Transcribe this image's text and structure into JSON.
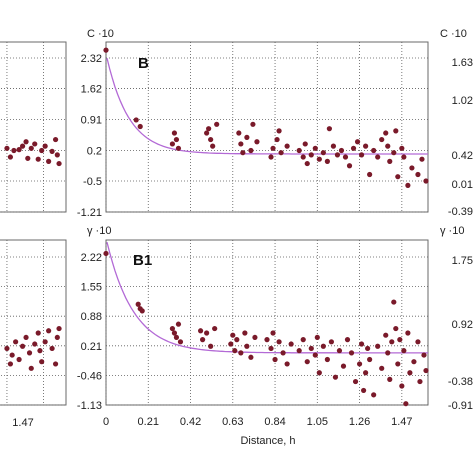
{
  "chart_data": [
    {
      "id": "left_top",
      "type": "scatter",
      "ylim": [
        -1.21,
        2.32
      ],
      "grid": true,
      "points": [
        [
          1.26,
          0.25
        ],
        [
          1.28,
          0.05
        ],
        [
          1.3,
          0.2
        ],
        [
          1.33,
          0.22
        ],
        [
          1.35,
          0.3
        ],
        [
          1.37,
          0.4
        ],
        [
          1.38,
          0.02
        ],
        [
          1.4,
          0.25
        ],
        [
          1.42,
          0.35
        ],
        [
          1.44,
          0.0
        ],
        [
          1.46,
          0.2
        ],
        [
          1.48,
          0.3
        ],
        [
          1.5,
          -0.05
        ],
        [
          1.52,
          0.18
        ],
        [
          1.54,
          0.45
        ],
        [
          1.55,
          0.1
        ],
        [
          1.56,
          -0.1
        ]
      ]
    },
    {
      "id": "left_bottom",
      "type": "scatter",
      "ylim": [
        -1.13,
        2.22
      ],
      "xticks": [
        "1.47"
      ],
      "grid": true,
      "points": [
        [
          1.26,
          0.15
        ],
        [
          1.28,
          -0.2
        ],
        [
          1.29,
          0.0
        ],
        [
          1.31,
          0.3
        ],
        [
          1.33,
          -0.1
        ],
        [
          1.35,
          0.2
        ],
        [
          1.37,
          0.4
        ],
        [
          1.39,
          0.05
        ],
        [
          1.4,
          -0.3
        ],
        [
          1.42,
          0.25
        ],
        [
          1.44,
          0.5
        ],
        [
          1.45,
          0.1
        ],
        [
          1.46,
          -0.15
        ],
        [
          1.48,
          0.3
        ],
        [
          1.5,
          0.55
        ],
        [
          1.52,
          0.15
        ],
        [
          1.54,
          -0.2
        ],
        [
          1.55,
          0.4
        ],
        [
          1.56,
          0.6
        ]
      ]
    },
    {
      "id": "B",
      "type": "scatter",
      "panel_label": "B",
      "y_axis_label": "C ·10",
      "yticks": [
        "2.32",
        "1.62",
        "0.91",
        "0.2",
        "-0.5",
        "-1.21"
      ],
      "ytick_values": [
        2.32,
        1.62,
        0.91,
        0.2,
        -0.5,
        -1.21
      ],
      "ylim": [
        -1.21,
        2.32
      ],
      "xlim": [
        0,
        1.6
      ],
      "grid": true,
      "fit_curve": {
        "asymptote": 0.12,
        "amplitude": 2.3,
        "decay": 9
      },
      "points": [
        [
          0.0,
          2.5
        ],
        [
          0.15,
          0.9
        ],
        [
          0.17,
          0.75
        ],
        [
          0.33,
          0.35
        ],
        [
          0.34,
          0.6
        ],
        [
          0.35,
          0.45
        ],
        [
          0.36,
          0.25
        ],
        [
          0.5,
          0.6
        ],
        [
          0.51,
          0.7
        ],
        [
          0.52,
          0.45
        ],
        [
          0.53,
          0.3
        ],
        [
          0.55,
          0.8
        ],
        [
          0.66,
          0.6
        ],
        [
          0.67,
          0.35
        ],
        [
          0.68,
          0.15
        ],
        [
          0.7,
          0.5
        ],
        [
          0.72,
          0.2
        ],
        [
          0.73,
          0.8
        ],
        [
          0.75,
          0.4
        ],
        [
          0.82,
          0.05
        ],
        [
          0.83,
          0.25
        ],
        [
          0.85,
          0.45
        ],
        [
          0.86,
          0.65
        ],
        [
          0.87,
          0.15
        ],
        [
          0.9,
          0.3
        ],
        [
          0.96,
          0.2
        ],
        [
          0.98,
          0.05
        ],
        [
          0.99,
          0.35
        ],
        [
          1.0,
          -0.1
        ],
        [
          1.02,
          0.1
        ],
        [
          1.04,
          0.25
        ],
        [
          1.06,
          0.0
        ],
        [
          1.08,
          0.15
        ],
        [
          1.1,
          -0.05
        ],
        [
          1.11,
          0.7
        ],
        [
          1.13,
          0.3
        ],
        [
          1.15,
          0.1
        ],
        [
          1.17,
          0.2
        ],
        [
          1.19,
          0.05
        ],
        [
          1.21,
          -0.15
        ],
        [
          1.23,
          0.25
        ],
        [
          1.25,
          0.4
        ],
        [
          1.27,
          0.1
        ],
        [
          1.29,
          0.3
        ],
        [
          1.31,
          -0.35
        ],
        [
          1.33,
          0.2
        ],
        [
          1.35,
          0.05
        ],
        [
          1.37,
          0.45
        ],
        [
          1.39,
          0.6
        ],
        [
          1.4,
          0.3
        ],
        [
          1.41,
          -0.05
        ],
        [
          1.43,
          0.15
        ],
        [
          1.44,
          0.65
        ],
        [
          1.45,
          -0.4
        ],
        [
          1.47,
          0.25
        ],
        [
          1.48,
          0.05
        ],
        [
          1.5,
          -0.6
        ],
        [
          1.52,
          -0.2
        ],
        [
          1.55,
          -0.35
        ],
        [
          1.57,
          0.0
        ],
        [
          1.59,
          -0.5
        ]
      ]
    },
    {
      "id": "B1",
      "type": "scatter",
      "panel_label": "B1",
      "y_axis_label": "γ ·10",
      "yticks": [
        "2.22",
        "1.55",
        "0.88",
        "0.21",
        "-0.46",
        "-1.13"
      ],
      "ytick_values": [
        2.22,
        1.55,
        0.88,
        0.21,
        -0.46,
        -1.13
      ],
      "xticks": [
        "0",
        "0.21",
        "0.42",
        "0.63",
        "0.84",
        "1.05",
        "1.26",
        "1.47"
      ],
      "xtick_values": [
        0,
        0.21,
        0.42,
        0.63,
        0.84,
        1.05,
        1.26,
        1.47
      ],
      "ylim": [
        -1.13,
        2.22
      ],
      "xlim": [
        0,
        1.6
      ],
      "xlabel": "Distance, h",
      "grid": true,
      "fit_curve": {
        "asymptote": 0.05,
        "amplitude": 2.6,
        "decay": 7.5
      },
      "points": [
        [
          0.0,
          2.3
        ],
        [
          0.16,
          1.15
        ],
        [
          0.17,
          1.05
        ],
        [
          0.18,
          1.0
        ],
        [
          0.33,
          0.6
        ],
        [
          0.34,
          0.5
        ],
        [
          0.35,
          0.4
        ],
        [
          0.36,
          0.7
        ],
        [
          0.37,
          0.3
        ],
        [
          0.47,
          0.55
        ],
        [
          0.48,
          0.35
        ],
        [
          0.5,
          0.5
        ],
        [
          0.52,
          0.2
        ],
        [
          0.54,
          0.6
        ],
        [
          0.62,
          0.25
        ],
        [
          0.63,
          0.45
        ],
        [
          0.64,
          0.1
        ],
        [
          0.65,
          0.35
        ],
        [
          0.67,
          0.05
        ],
        [
          0.69,
          0.5
        ],
        [
          0.7,
          0.2
        ],
        [
          0.72,
          -0.05
        ],
        [
          0.74,
          0.4
        ],
        [
          0.8,
          0.35
        ],
        [
          0.82,
          0.15
        ],
        [
          0.83,
          0.5
        ],
        [
          0.84,
          -0.1
        ],
        [
          0.86,
          0.3
        ],
        [
          0.88,
          0.05
        ],
        [
          0.9,
          -0.2
        ],
        [
          0.92,
          0.25
        ],
        [
          0.96,
          0.1
        ],
        [
          0.98,
          0.35
        ],
        [
          1.0,
          -0.15
        ],
        [
          1.02,
          0.15
        ],
        [
          1.04,
          0.0
        ],
        [
          1.05,
          0.4
        ],
        [
          1.06,
          -0.4
        ],
        [
          1.08,
          0.2
        ],
        [
          1.1,
          -0.1
        ],
        [
          1.12,
          0.3
        ],
        [
          1.14,
          -0.5
        ],
        [
          1.16,
          0.1
        ],
        [
          1.18,
          -0.25
        ],
        [
          1.2,
          0.35
        ],
        [
          1.22,
          0.05
        ],
        [
          1.24,
          -0.6
        ],
        [
          1.26,
          -0.2
        ],
        [
          1.27,
          0.25
        ],
        [
          1.28,
          -0.8
        ],
        [
          1.29,
          -0.4
        ],
        [
          1.3,
          0.15
        ],
        [
          1.31,
          -0.1
        ],
        [
          1.33,
          -0.9
        ],
        [
          1.35,
          0.2
        ],
        [
          1.37,
          -0.3
        ],
        [
          1.39,
          0.45
        ],
        [
          1.4,
          0.05
        ],
        [
          1.41,
          -0.55
        ],
        [
          1.42,
          0.3
        ],
        [
          1.43,
          1.2
        ],
        [
          1.44,
          0.6
        ],
        [
          1.45,
          -0.2
        ],
        [
          1.46,
          0.35
        ],
        [
          1.47,
          -0.7
        ],
        [
          1.48,
          0.1
        ],
        [
          1.49,
          -1.1
        ],
        [
          1.5,
          0.5
        ],
        [
          1.51,
          -0.4
        ],
        [
          1.53,
          -0.15
        ],
        [
          1.55,
          0.3
        ],
        [
          1.56,
          -0.6
        ],
        [
          1.58,
          0.0
        ],
        [
          1.59,
          -0.35
        ]
      ]
    },
    {
      "id": "right_top",
      "type": "scatter",
      "yticks": [
        "1.63",
        "1.02",
        "0.42",
        "0.01",
        "-0.39"
      ],
      "grid": true,
      "points": []
    },
    {
      "id": "right_bottom",
      "type": "scatter",
      "yticks": [
        "1.75",
        "0.92",
        "-0.38",
        "-0.91"
      ],
      "grid": true,
      "points": []
    }
  ],
  "colors": {
    "points": "#7a1a2a",
    "curve": "#b36ad6",
    "grid": "#5a5a5a",
    "frame": "#6a6a6a",
    "text": "#222222"
  }
}
